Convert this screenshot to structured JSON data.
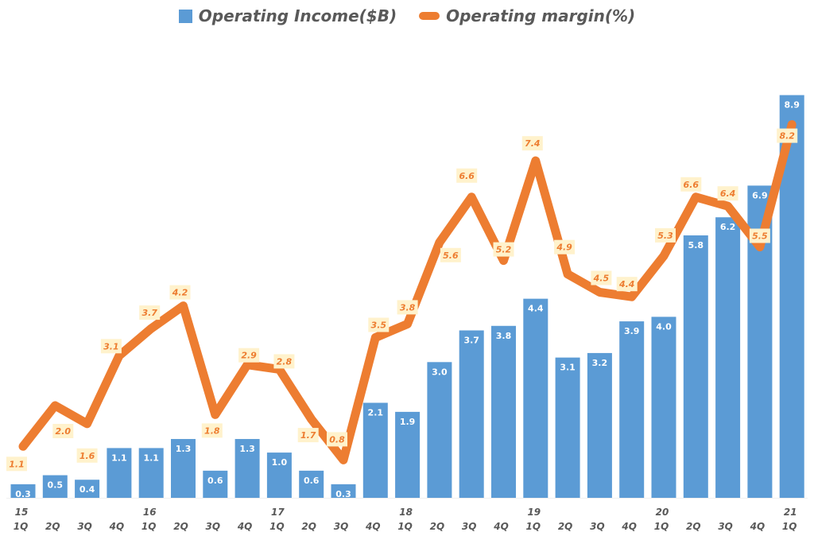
{
  "chart_data": {
    "type": "bar+line",
    "title": "",
    "categories": [
      "15 1Q",
      "2Q",
      "3Q",
      "4Q",
      "16 1Q",
      "2Q",
      "3Q",
      "4Q",
      "17 1Q",
      "2Q",
      "3Q",
      "4Q",
      "18 1Q",
      "2Q",
      "3Q",
      "4Q",
      "19 1Q",
      "2Q",
      "3Q",
      "4Q",
      "20 1Q",
      "2Q",
      "3Q",
      "4Q",
      "21 1Q"
    ],
    "year_labels": [
      "15",
      "",
      "",
      "",
      "16",
      "",
      "",
      "",
      "17",
      "",
      "",
      "",
      "18",
      "",
      "",
      "",
      "19",
      "",
      "",
      "",
      "20",
      "",
      "",
      "",
      "21"
    ],
    "quarter_labels": [
      "1Q",
      "2Q",
      "3Q",
      "4Q",
      "1Q",
      "2Q",
      "3Q",
      "4Q",
      "1Q",
      "2Q",
      "3Q",
      "4Q",
      "1Q",
      "2Q",
      "3Q",
      "4Q",
      "1Q",
      "2Q",
      "3Q",
      "4Q",
      "1Q",
      "2Q",
      "3Q",
      "4Q",
      "1Q"
    ],
    "series": [
      {
        "name": "Operating Income($B)",
        "type": "bar",
        "color": "#5b9bd5",
        "values": [
          0.3,
          0.5,
          0.4,
          1.1,
          1.1,
          1.3,
          0.6,
          1.3,
          1.0,
          0.6,
          0.3,
          2.1,
          1.9,
          3.0,
          3.7,
          3.8,
          4.4,
          3.1,
          3.2,
          3.9,
          4.0,
          5.8,
          6.2,
          6.9,
          8.9
        ]
      },
      {
        "name": "Operating margin(%)",
        "type": "line",
        "color": "#ed7d31",
        "values": [
          1.1,
          2.0,
          1.6,
          3.1,
          3.7,
          4.2,
          1.8,
          2.9,
          2.8,
          1.7,
          0.8,
          3.5,
          3.8,
          5.6,
          6.6,
          5.2,
          7.4,
          4.9,
          4.5,
          4.4,
          5.3,
          6.6,
          6.4,
          5.5,
          8.2
        ]
      }
    ],
    "ylim": [
      0,
      11
    ],
    "grid": false,
    "legend": "top-center",
    "label_bg": "#fff2cc"
  }
}
